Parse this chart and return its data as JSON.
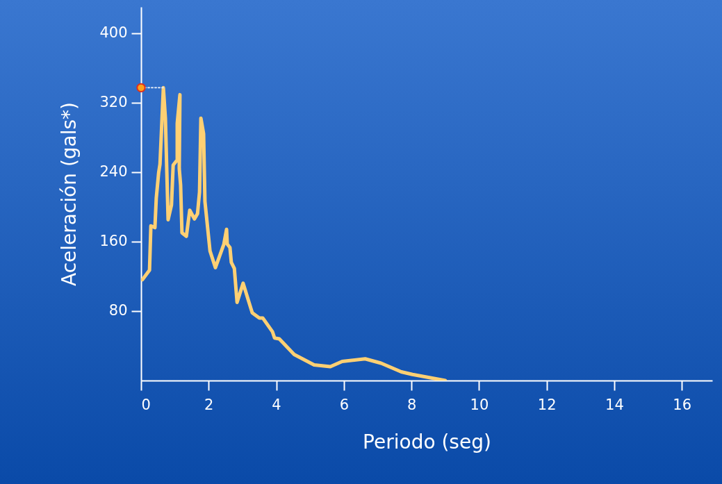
{
  "chart_data": {
    "type": "line",
    "xlabel": "Periodo (seg)",
    "ylabel": "Aceleración (gals*)",
    "xlim": [
      0,
      16.9
    ],
    "xticks": [
      0,
      2,
      4,
      6,
      8,
      10,
      12,
      14,
      16
    ],
    "ylim": [
      0,
      430
    ],
    "yticks": [
      80,
      160,
      240,
      320,
      400
    ],
    "series": [
      {
        "type": "line",
        "color": "#ffd073",
        "line_style": "solid",
        "x": [
          0.04,
          0.25,
          0.29,
          0.41,
          0.45,
          0.52,
          0.56,
          0.66,
          0.72,
          0.8,
          0.9,
          0.95,
          1.07,
          1.07,
          1.15,
          1.13,
          1.17,
          1.21,
          1.34,
          1.44,
          1.58,
          1.67,
          1.73,
          1.77,
          1.85,
          1.89,
          2.04,
          2.2,
          2.45,
          2.53,
          2.55,
          2.63,
          2.67,
          2.76,
          2.84,
          3.02,
          3.17,
          3.29,
          3.5,
          3.6,
          3.89,
          3.95,
          4.09,
          4.53,
          5.12,
          5.6,
          5.95,
          6.63,
          7.1,
          7.7,
          8.03,
          9.0
        ],
        "values": [
          116,
          127,
          178,
          176,
          210,
          239,
          249,
          337,
          302,
          185,
          202,
          248,
          254,
          296,
          329,
          244,
          225,
          170,
          166,
          196,
          186,
          192,
          217,
          302,
          284,
          206,
          149,
          130,
          157,
          174,
          157,
          153,
          136,
          129,
          90,
          112,
          93,
          78,
          72,
          72,
          56,
          49,
          48,
          30,
          18,
          16,
          22,
          25,
          20,
          10,
          7,
          0
        ]
      },
      {
        "type": "line",
        "color": "#dce6f5",
        "line_style": "dotted",
        "x": [
          0,
          0.66
        ],
        "values": [
          337,
          337
        ]
      },
      {
        "type": "scatter",
        "color": "#ffa31a",
        "marker": "circle",
        "x": [
          0
        ],
        "values": [
          337
        ]
      }
    ]
  }
}
